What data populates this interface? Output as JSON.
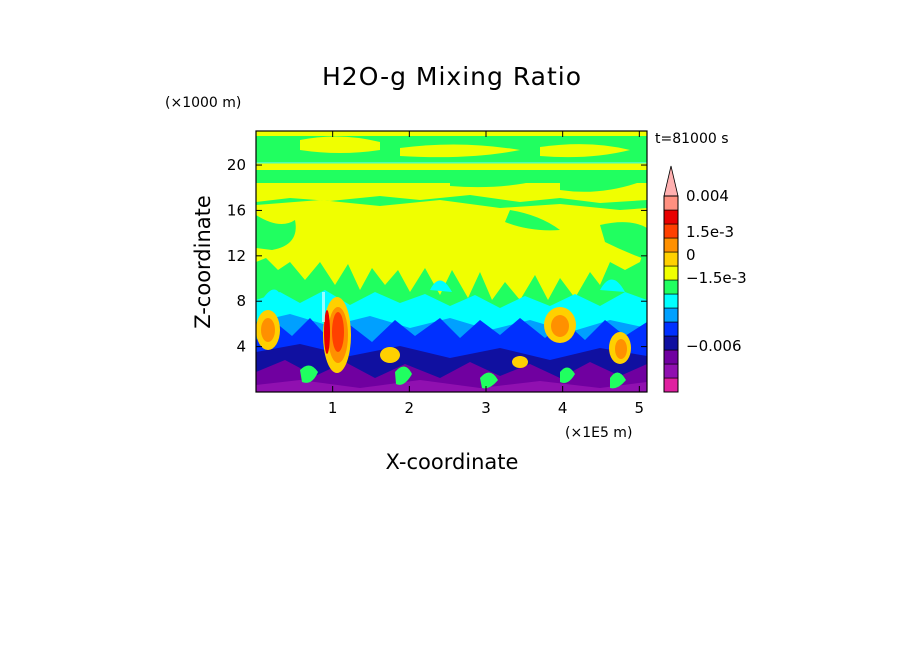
{
  "chart_data": {
    "type": "heatmap",
    "title": "H2O-g Mixing Ratio",
    "xlabel": "X-coordinate",
    "ylabel": "Z-coordinate",
    "x_unit": "(×1E5 m)",
    "y_unit": "(×1000 m)",
    "time_label": "t=81000 s",
    "xlim": [
      0,
      5.1
    ],
    "ylim": [
      0,
      23
    ],
    "x_ticks": [
      {
        "value": 1,
        "label": "1"
      },
      {
        "value": 2,
        "label": "2"
      },
      {
        "value": 3,
        "label": "3"
      },
      {
        "value": 4,
        "label": "4"
      },
      {
        "value": 5,
        "label": "5"
      }
    ],
    "y_ticks": [
      {
        "value": 4,
        "label": "4"
      },
      {
        "value": 8,
        "label": "8"
      },
      {
        "value": 12,
        "label": "12"
      },
      {
        "value": 16,
        "label": "16"
      },
      {
        "value": 20,
        "label": "20"
      }
    ],
    "colorbar": {
      "colors": [
        "#e020a0",
        "#9010b0",
        "#7000a0",
        "#1010a0",
        "#0030ff",
        "#00a0ff",
        "#00ffff",
        "#20ff60",
        "#f0ff00",
        "#ffd000",
        "#ff9000",
        "#ff4000",
        "#e80000",
        "#ff9080",
        "#ffb0b0"
      ],
      "labels": [
        {
          "text": "0.004",
          "level": 0.004
        },
        {
          "text": "1.5e-3",
          "level": 0.0015
        },
        {
          "text": "0",
          "level": 0
        },
        {
          "text": "−1.5e-3",
          "level": -0.0015
        },
        {
          "text": "−0.006",
          "level": -0.006
        }
      ]
    },
    "field_regions": [
      {
        "kind": "background",
        "x": [
          0,
          5.1
        ],
        "z": [
          0,
          23
        ],
        "value": 0.0003
      },
      {
        "kind": "band",
        "z": [
          16.5,
          19.8
        ],
        "value": 0.0003
      },
      {
        "kind": "band",
        "z": [
          20.2,
          21.5
        ],
        "value": 0.0004
      },
      {
        "kind": "blob",
        "x": 0.3,
        "z": 5.0,
        "value": 0.0012
      },
      {
        "kind": "blob",
        "x": 1.05,
        "z": 5.0,
        "value": 0.003
      },
      {
        "kind": "blob",
        "x": 3.85,
        "z": 5.3,
        "value": 0.0012
      },
      {
        "kind": "blob",
        "x": 4.7,
        "z": 4.0,
        "value": 0.0012
      }
    ]
  }
}
